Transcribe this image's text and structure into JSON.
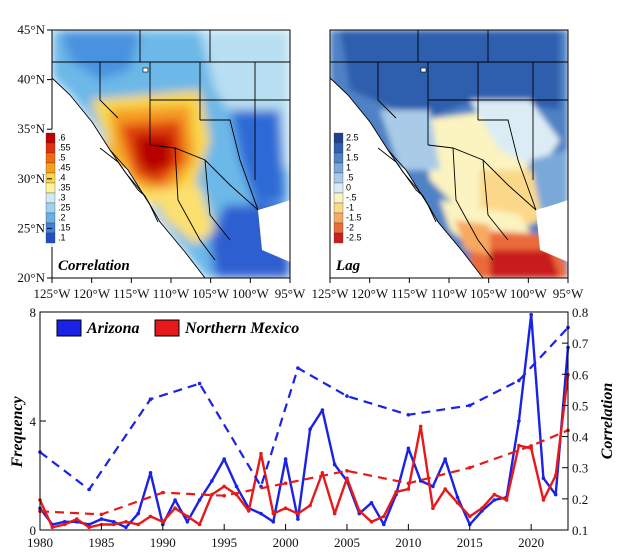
{
  "maps": {
    "lat_ticks": [
      "45°N",
      "40°N",
      "35°N",
      "30°N",
      "25°N",
      "20°N"
    ],
    "lon_ticks": [
      "125°W",
      "120°W",
      "115°W",
      "110°W",
      "105°W",
      "100°W",
      "95°W"
    ],
    "left": {
      "label": "Correlation",
      "colorbar": [
        ".6",
        ".55",
        ".5",
        ".45",
        ".4",
        ".35",
        ".3",
        ".25",
        ".2",
        ".15",
        ".1"
      ],
      "colors": [
        "#c00000",
        "#e23010",
        "#f26a10",
        "#f7a21a",
        "#fbd84a",
        "#fdf3a0",
        "#cfeaf5",
        "#9ed3ef",
        "#69b0e6",
        "#3b82d8",
        "#1f4fc4"
      ]
    },
    "right": {
      "label": "Lag",
      "colorbar": [
        "2.5",
        "2",
        "1.5",
        "1",
        ".5",
        "0",
        "-.5",
        "-1",
        "-1.5",
        "-2",
        "-2.5"
      ],
      "colors": [
        "#1f3f8f",
        "#2f5fae",
        "#4f82c4",
        "#7aa8d8",
        "#a9cbe8",
        "#dcecf4",
        "#fbf3c0",
        "#fcd88a",
        "#f7a960",
        "#ea6a3a",
        "#c81e1e"
      ]
    }
  },
  "chart_data": {
    "type": "line",
    "xlim": [
      1980,
      2023
    ],
    "x_ticks": [
      "1980",
      "1985",
      "1990",
      "1995",
      "2000",
      "2005",
      "2010",
      "2015",
      "2020"
    ],
    "ylabel_left": "Frequency",
    "ylim_left": [
      0,
      8
    ],
    "y_ticks_left": [
      "0",
      "4",
      "8"
    ],
    "ylabel_right": "Correlation",
    "ylim_right": [
      0.1,
      0.8
    ],
    "y_ticks_right": [
      "0.1",
      "0.2",
      "0.3",
      "0.4",
      "0.5",
      "0.6",
      "0.7",
      "0.8"
    ],
    "legend": [
      "Arizona",
      "Northern Mexico"
    ],
    "colors": {
      "arizona": "#1a22e6",
      "mexico": "#e61a1a"
    },
    "years": [
      1980,
      1981,
      1982,
      1983,
      1984,
      1985,
      1986,
      1987,
      1988,
      1989,
      1990,
      1991,
      1992,
      1993,
      1994,
      1995,
      1996,
      1997,
      1998,
      1999,
      2000,
      2001,
      2002,
      2003,
      2004,
      2005,
      2006,
      2007,
      2008,
      2009,
      2010,
      2011,
      2012,
      2013,
      2014,
      2015,
      2016,
      2017,
      2018,
      2019,
      2020,
      2021,
      2022,
      2023
    ],
    "series": [
      {
        "name": "Arizona",
        "axis": "left",
        "style": "solid",
        "values": [
          0.8,
          0.2,
          0.3,
          0.3,
          0.2,
          0.4,
          0.3,
          0.1,
          0.6,
          2.1,
          0.2,
          1.1,
          0.3,
          1.1,
          1.8,
          2.6,
          1.6,
          0.8,
          0.6,
          0.3,
          2.6,
          0.4,
          3.7,
          4.4,
          2.4,
          1.8,
          0.6,
          1.0,
          0.2,
          1.3,
          3.0,
          1.8,
          1.6,
          2.6,
          1.2,
          0.2,
          0.7,
          1.1,
          1.2,
          4.0,
          7.9,
          1.9,
          1.3,
          6.7
        ]
      },
      {
        "name": "Northern Mexico",
        "axis": "left",
        "style": "solid",
        "values": [
          1.1,
          0.1,
          0.2,
          0.4,
          0.1,
          0.2,
          0.2,
          0.3,
          0.2,
          0.5,
          0.3,
          0.8,
          0.5,
          0.2,
          1.3,
          1.6,
          1.3,
          0.7,
          2.8,
          0.6,
          0.8,
          0.6,
          0.9,
          2.1,
          0.6,
          1.9,
          0.7,
          0.3,
          0.5,
          1.4,
          1.5,
          3.8,
          0.8,
          1.5,
          1.0,
          0.5,
          0.8,
          1.3,
          1.1,
          3.1,
          3.0,
          1.1,
          2.0,
          5.7
        ]
      },
      {
        "name": "Arizona",
        "axis": "right",
        "style": "dashed",
        "x": [
          1980,
          1984,
          1989,
          1993,
          1998,
          2001,
          2005,
          2010,
          2015,
          2019,
          2023
        ],
        "values": [
          0.35,
          0.23,
          0.52,
          0.57,
          0.24,
          0.62,
          0.53,
          0.47,
          0.5,
          0.58,
          0.75
        ]
      },
      {
        "name": "Northern Mexico",
        "axis": "right",
        "style": "dashed",
        "x": [
          1980,
          1985,
          1990,
          1995,
          2000,
          2005,
          2010,
          2015,
          2020,
          2023
        ],
        "values": [
          0.16,
          0.15,
          0.22,
          0.21,
          0.25,
          0.29,
          0.25,
          0.3,
          0.37,
          0.42
        ]
      }
    ]
  }
}
